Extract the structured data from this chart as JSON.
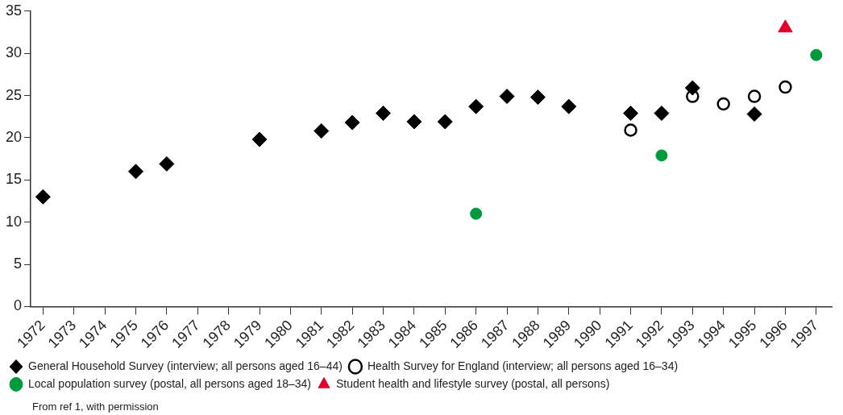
{
  "chart_data": {
    "type": "scatter",
    "xlim": [
      1971.6,
      1997.5
    ],
    "xticks": [
      1972,
      1973,
      1974,
      1975,
      1976,
      1977,
      1978,
      1979,
      1980,
      1981,
      1982,
      1983,
      1984,
      1985,
      1986,
      1987,
      1988,
      1989,
      1990,
      1991,
      1992,
      1993,
      1994,
      1995,
      1996,
      1997
    ],
    "ylim": [
      0,
      35
    ],
    "yticks": [
      0,
      5,
      10,
      15,
      20,
      25,
      30,
      35
    ],
    "grid": false,
    "legend": "bottom",
    "series": [
      {
        "name": "General Household Survey (interview; all persons aged 16–44)",
        "color": "#000000",
        "marker": "diamond",
        "x": [
          1972,
          1975,
          1976,
          1979,
          1981,
          1982,
          1983,
          1984,
          1985,
          1986,
          1987,
          1988,
          1989,
          1991,
          1992,
          1993,
          1995
        ],
        "values": [
          13.0,
          16.0,
          16.9,
          19.8,
          20.8,
          21.8,
          22.9,
          21.9,
          21.9,
          23.7,
          24.9,
          24.8,
          23.7,
          22.9,
          22.9,
          25.9,
          22.8
        ]
      },
      {
        "name": "Health Survey for England (interview; all persons aged 16–34)",
        "color": "#000000",
        "marker": "circle-open",
        "x": [
          1991,
          1993,
          1994,
          1995,
          1996
        ],
        "values": [
          20.9,
          24.9,
          24.0,
          24.9,
          26.0
        ]
      },
      {
        "name": "Local population survey (postal, all persons aged 18–34)",
        "color": "#009a3e",
        "marker": "circle",
        "x": [
          1986,
          1992,
          1997
        ],
        "values": [
          11.0,
          17.9,
          29.8
        ]
      },
      {
        "name": "Student health and lifestyle survey (postal, all persons)",
        "color": "#e4002b",
        "marker": "triangle",
        "x": [
          1996
        ],
        "values": [
          33.0
        ]
      }
    ],
    "annotations": [
      "From ref 1, with permission"
    ]
  }
}
